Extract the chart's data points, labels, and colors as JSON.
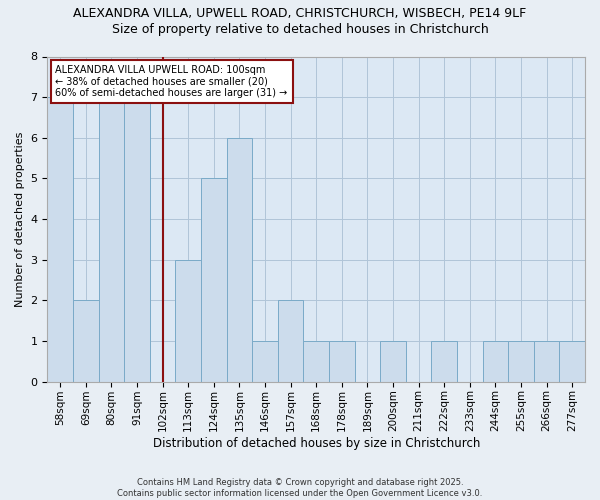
{
  "title1": "ALEXANDRA VILLA, UPWELL ROAD, CHRISTCHURCH, WISBECH, PE14 9LF",
  "title2": "Size of property relative to detached houses in Christchurch",
  "xlabel": "Distribution of detached houses by size in Christchurch",
  "ylabel": "Number of detached properties",
  "categories": [
    "58sqm",
    "69sqm",
    "80sqm",
    "91sqm",
    "102sqm",
    "113sqm",
    "124sqm",
    "135sqm",
    "146sqm",
    "157sqm",
    "168sqm",
    "178sqm",
    "189sqm",
    "200sqm",
    "211sqm",
    "222sqm",
    "233sqm",
    "244sqm",
    "255sqm",
    "266sqm",
    "277sqm"
  ],
  "values": [
    7,
    2,
    7,
    7,
    0,
    3,
    5,
    6,
    1,
    2,
    1,
    1,
    0,
    1,
    0,
    1,
    0,
    1,
    1,
    1,
    1
  ],
  "property_index": 4,
  "property_label": "ALEXANDRA VILLA UPWELL ROAD: 100sqm\n← 38% of detached houses are smaller (20)\n60% of semi-detached houses are larger (31) →",
  "bar_color": "#ccdcec",
  "bar_edge_color": "#7aaac8",
  "ref_line_color": "#8b1010",
  "annotation_box_edge": "#8b1010",
  "ylim": [
    0,
    8
  ],
  "yticks": [
    0,
    1,
    2,
    3,
    4,
    5,
    6,
    7,
    8
  ],
  "grid_color": "#b0c4d8",
  "bg_color": "#dce8f4",
  "fig_bg_color": "#e8eef4",
  "footer": "Contains HM Land Registry data © Crown copyright and database right 2025.\nContains public sector information licensed under the Open Government Licence v3.0.",
  "title1_fontsize": 9,
  "title2_fontsize": 9,
  "annot_fontsize": 7,
  "ylabel_fontsize": 8,
  "xlabel_fontsize": 8.5
}
